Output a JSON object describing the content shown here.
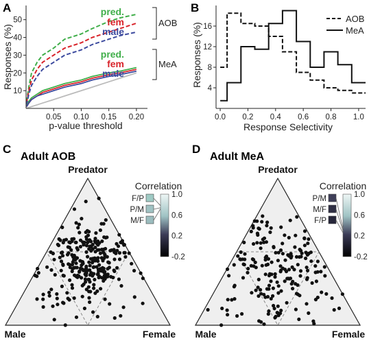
{
  "panels": {
    "A": {
      "label": "A"
    },
    "B": {
      "label": "B"
    },
    "C": {
      "label": "C",
      "title": "Adult AOB"
    },
    "D": {
      "label": "D",
      "title": "Adult MeA"
    }
  },
  "colors": {
    "pred": "#3fae49",
    "fem": "#d8232a",
    "male": "#3c4a9e",
    "chance": "#bbbbbb",
    "axis": "#222222",
    "triangle_fill": "#efefef"
  },
  "chart_data": [
    {
      "type": "line",
      "panel": "A",
      "xlabel": "p-value threshold",
      "ylabel": "Responses (%)",
      "xticks": [
        "0.05",
        "0.10",
        "0.15",
        "0.20"
      ],
      "yticks": [
        "10",
        "20",
        "30",
        "40",
        "50"
      ],
      "xlim": [
        0,
        0.22
      ],
      "ylim": [
        0,
        58
      ],
      "x": [
        0.001,
        0.005,
        0.01,
        0.02,
        0.03,
        0.05,
        0.07,
        0.1,
        0.12,
        0.15,
        0.17,
        0.2
      ],
      "series": [
        {
          "name": "pred.",
          "group": "AOB",
          "style": "dashed",
          "color": "pred",
          "values": [
            4,
            12,
            20,
            26,
            30,
            34,
            39,
            42,
            45,
            49,
            51,
            53
          ]
        },
        {
          "name": "fem",
          "group": "AOB",
          "style": "dashed",
          "color": "fem",
          "values": [
            3,
            10,
            16,
            22,
            26,
            30,
            34,
            37,
            40,
            43,
            45,
            48
          ]
        },
        {
          "name": "male",
          "group": "AOB",
          "style": "dashed",
          "color": "male",
          "values": [
            2,
            8,
            13,
            18,
            22,
            26,
            30,
            33,
            36,
            39,
            41,
            43
          ]
        },
        {
          "name": "pred.",
          "group": "MeA",
          "style": "solid",
          "color": "pred",
          "values": [
            1,
            4,
            6,
            8,
            10,
            12,
            14,
            16,
            18,
            20,
            21,
            23
          ]
        },
        {
          "name": "fem",
          "group": "MeA",
          "style": "solid",
          "color": "fem",
          "values": [
            1,
            3,
            5,
            7,
            9,
            11,
            13,
            15,
            17,
            19,
            20,
            22
          ]
        },
        {
          "name": "male",
          "group": "MeA",
          "style": "solid",
          "color": "male",
          "values": [
            1,
            3,
            5,
            7,
            8,
            10,
            12,
            14,
            16,
            18,
            19,
            21
          ]
        },
        {
          "name": "",
          "group": "chance",
          "style": "solid",
          "color": "chance",
          "values": [
            0.1,
            0.5,
            1,
            2,
            3,
            5,
            7,
            10,
            12,
            15,
            17,
            20
          ]
        }
      ],
      "legend_groups": [
        "AOB",
        "MeA"
      ]
    },
    {
      "type": "line",
      "panel": "B",
      "xlabel": "Response Selectivity",
      "ylabel": "Responses (%)",
      "xticks": [
        "0.0",
        "0.2",
        "0.4",
        "0.6",
        "0.8",
        "1.0"
      ],
      "yticks": [
        "4",
        "8",
        "12",
        "16"
      ],
      "xlim": [
        -0.03,
        1.05
      ],
      "ylim": [
        0,
        20
      ],
      "x": [
        0,
        0.1,
        0.2,
        0.3,
        0.4,
        0.5,
        0.6,
        0.7,
        0.8,
        0.9,
        1.0
      ],
      "series": [
        {
          "name": "AOB",
          "style": "dashed",
          "values": [
            8,
            18.5,
            16.5,
            16,
            14,
            11,
            7,
            5.5,
            4,
            3.5,
            3
          ]
        },
        {
          "name": "MeA",
          "style": "solid",
          "values": [
            1.5,
            5,
            12,
            11.5,
            16.5,
            19,
            13,
            8,
            11,
            8.5,
            5
          ]
        }
      ],
      "legend": "top-right"
    },
    {
      "type": "scatter",
      "panel": "C",
      "corners": {
        "top": "Predator",
        "left": "Male",
        "right": "Female"
      },
      "colorbar": {
        "title": "Correlation",
        "ticks": [
          "1.0",
          "0.6",
          "0.2",
          "-0.2"
        ],
        "range": [
          -0.2,
          1.0
        ]
      },
      "markers": [
        {
          "label": "F/P",
          "value": 0.78,
          "color": "#9fcac4"
        },
        {
          "label": "P/M",
          "value": 0.74,
          "color": "#a0c2c3"
        },
        {
          "label": "M/F",
          "value": 0.72,
          "color": "#9bbcbe"
        }
      ],
      "points": []
    },
    {
      "type": "scatter",
      "panel": "D",
      "corners": {
        "top": "Predator",
        "left": "Male",
        "right": "Female"
      },
      "colorbar": {
        "title": "Correlation",
        "ticks": [
          "1.0",
          "0.6",
          "0.2",
          "-0.2"
        ],
        "range": [
          -0.2,
          1.0
        ]
      },
      "markers": [
        {
          "label": "P/M",
          "value": 0.34,
          "color": "#3f3f58"
        },
        {
          "label": "M/F",
          "value": 0.3,
          "color": "#2f2f44"
        },
        {
          "label": "F/P",
          "value": 0.26,
          "color": "#26263a"
        }
      ],
      "points": []
    }
  ]
}
